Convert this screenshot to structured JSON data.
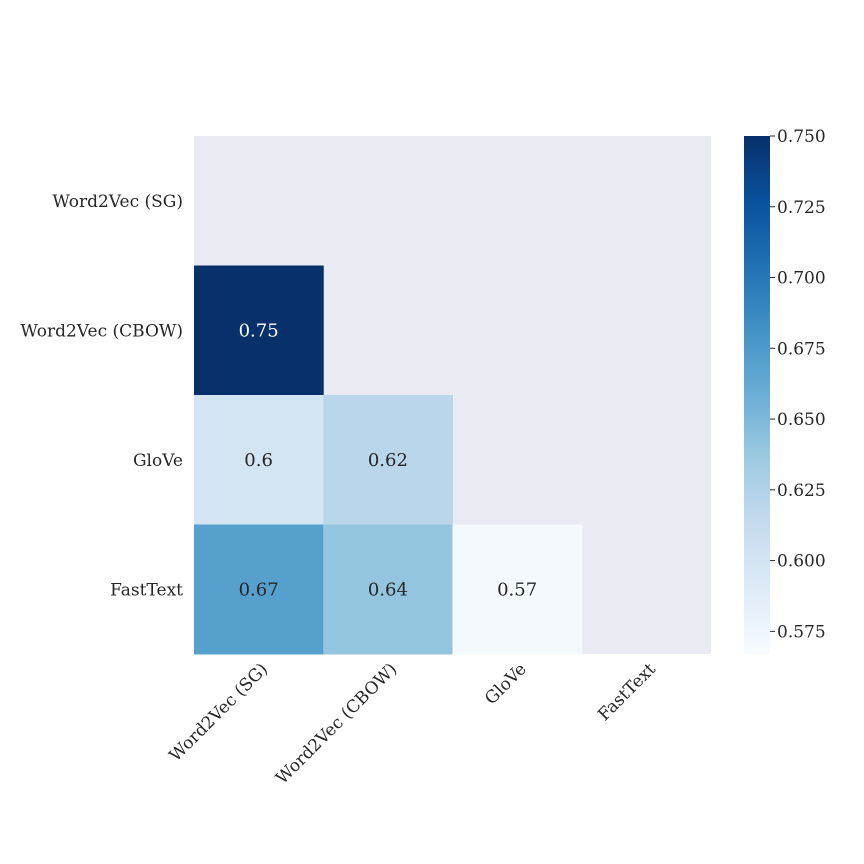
{
  "chart_data": {
    "type": "heatmap",
    "title": "",
    "xlabel": "",
    "ylabel": "",
    "rows": [
      "Word2Vec (SG)",
      "Word2Vec (CBOW)",
      "GloVe",
      "FastText"
    ],
    "columns": [
      "Word2Vec (SG)",
      "Word2Vec (CBOW)",
      "GloVe",
      "FastText"
    ],
    "mask": "upper-triangle-including-diagonal",
    "cells": [
      {
        "row": 1,
        "col": 0,
        "value": 0.75,
        "label": "0.75"
      },
      {
        "row": 2,
        "col": 0,
        "value": 0.6,
        "label": "0.6"
      },
      {
        "row": 2,
        "col": 1,
        "value": 0.62,
        "label": "0.62"
      },
      {
        "row": 3,
        "col": 0,
        "value": 0.67,
        "label": "0.67"
      },
      {
        "row": 3,
        "col": 1,
        "value": 0.64,
        "label": "0.64"
      },
      {
        "row": 3,
        "col": 2,
        "value": 0.57,
        "label": "0.57"
      }
    ],
    "colorbar": {
      "vmin": 0.567,
      "vmax": 0.75,
      "ticks": [
        0.575,
        0.6,
        0.625,
        0.65,
        0.675,
        0.7,
        0.725,
        0.75
      ],
      "tick_labels": [
        "0.575",
        "0.600",
        "0.625",
        "0.650",
        "0.675",
        "0.700",
        "0.725",
        "0.750"
      ],
      "colormap": "Blues"
    },
    "colors": {
      "masked_background": "#eaeaf2",
      "text_dark": "#262626",
      "text_light": "#ffffff"
    }
  }
}
